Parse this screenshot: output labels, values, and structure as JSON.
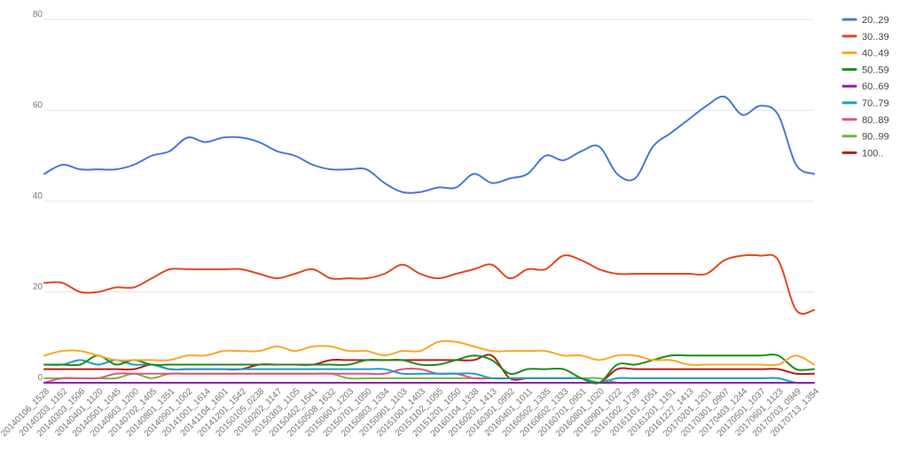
{
  "chart_data": {
    "type": "line",
    "title": "",
    "xlabel": "",
    "ylabel": "",
    "ylim": [
      0,
      80
    ],
    "yticks": [
      0,
      20,
      40,
      60,
      80
    ],
    "grid": true,
    "legend_position": "top-right",
    "x_labels": [
      "20140106_1528",
      "20140203_1152",
      "20140303_1506",
      "20140401_1120",
      "20140501_1045",
      "20140603_1200",
      "20140702_1405",
      "20140801_1351",
      "20140901_1002",
      "20141001_1614",
      "20141104_1601",
      "20141201_1542",
      "20150105_0238",
      "20150202_1147",
      "20150303_1105",
      "20150402_1541",
      "20150508_1632",
      "20150601_1203",
      "20150701_1050",
      "20150803_1334",
      "20150901_1103",
      "20151001_1403",
      "20151102_1055",
      "20151201_1050",
      "20160104_1338",
      "20160201_1413",
      "20160301_0952",
      "20160401_1011",
      "20160502_1335",
      "20160602_1333",
      "20160701_0951",
      "20160801_1020",
      "20160901_1022",
      "20161002_1739",
      "20161101_1051",
      "20161201_1151",
      "20161227_1413",
      "20170201_1201",
      "20170301_0907",
      "20170403_1244",
      "20170501_1037",
      "20170601_1123",
      "20170703_0949",
      "20170713_1354"
    ],
    "series": [
      {
        "name": "20..29",
        "color": "#4a76d9",
        "values": [
          46,
          48,
          47,
          47,
          47,
          48,
          50,
          51,
          54,
          53,
          54,
          54,
          53,
          51,
          50,
          48,
          47,
          47,
          47,
          44,
          42,
          42,
          43,
          43,
          46,
          44,
          45,
          46,
          50,
          49,
          51,
          52,
          46,
          45,
          52,
          55,
          58,
          61,
          63,
          59,
          61,
          59,
          48,
          46
        ]
      },
      {
        "name": "30..39",
        "color": "#e2481f",
        "values": [
          22,
          22,
          20,
          20,
          21,
          21,
          23,
          25,
          25,
          25,
          25,
          25,
          24,
          23,
          24,
          25,
          23,
          23,
          23,
          24,
          26,
          24,
          23,
          24,
          25,
          26,
          23,
          25,
          25,
          28,
          27,
          25,
          24,
          24,
          24,
          24,
          24,
          24,
          27,
          28,
          28,
          27,
          16,
          16
        ]
      },
      {
        "name": "40..49",
        "color": "#f9a825",
        "values": [
          6,
          7,
          7,
          6,
          5,
          5,
          5,
          5,
          6,
          6,
          7,
          7,
          7,
          8,
          7,
          8,
          8,
          7,
          7,
          6,
          7,
          7,
          9,
          9,
          8,
          7,
          7,
          7,
          7,
          6,
          6,
          5,
          6,
          6,
          5,
          5,
          4,
          4,
          4,
          4,
          4,
          4,
          6,
          4
        ]
      },
      {
        "name": "50..59",
        "color": "#1e8b1e",
        "values": [
          4,
          4,
          4,
          6,
          4,
          5,
          4,
          4,
          4,
          4,
          4,
          4,
          4,
          4,
          4,
          4,
          4,
          4,
          5,
          5,
          5,
          4,
          4,
          5,
          6,
          5,
          2,
          3,
          3,
          3,
          1,
          0,
          4,
          4,
          5,
          6,
          6,
          6,
          6,
          6,
          6,
          6,
          3,
          3
        ]
      },
      {
        "name": "60..69",
        "color": "#8e24aa",
        "values": [
          0,
          0,
          0,
          0,
          0,
          0,
          0,
          0,
          0,
          0,
          0,
          0,
          0,
          0,
          0,
          0,
          0,
          0,
          0,
          0,
          0,
          0,
          0,
          0,
          0,
          0,
          0,
          0,
          0,
          0,
          0,
          0,
          0,
          0,
          0,
          0,
          0,
          0,
          0,
          0,
          0,
          0,
          0,
          0
        ]
      },
      {
        "name": "70..79",
        "color": "#1a9fc0",
        "values": [
          4,
          4,
          5,
          4,
          5,
          4,
          4,
          3,
          3,
          3,
          3,
          3,
          3,
          3,
          3,
          3,
          3,
          3,
          3,
          3,
          2,
          2,
          2,
          2,
          2,
          1,
          1,
          1,
          1,
          1,
          1,
          0,
          1,
          1,
          1,
          1,
          1,
          1,
          1,
          1,
          1,
          1,
          0,
          0
        ]
      },
      {
        "name": "80..89",
        "color": "#e05387",
        "values": [
          0,
          1,
          1,
          1,
          2,
          2,
          2,
          2,
          2,
          2,
          2,
          2,
          2,
          2,
          2,
          2,
          2,
          2,
          2,
          2,
          3,
          3,
          2,
          2,
          1,
          1,
          1,
          1,
          1,
          1,
          1,
          0,
          0,
          0,
          0,
          0,
          0,
          0,
          0,
          0,
          0,
          0,
          0,
          0
        ]
      },
      {
        "name": "90..99",
        "color": "#7cb342",
        "values": [
          1,
          1,
          1,
          1,
          1,
          2,
          1,
          2,
          2,
          2,
          2,
          2,
          2,
          2,
          2,
          2,
          2,
          1,
          1,
          1,
          1,
          1,
          1,
          1,
          1,
          1,
          1,
          1,
          1,
          1,
          1,
          1,
          0,
          0,
          0,
          0,
          0,
          0,
          0,
          0,
          0,
          0,
          0,
          0
        ]
      },
      {
        "name": "100..",
        "color": "#b71c1c",
        "values": [
          3,
          3,
          3,
          3,
          3,
          3,
          4,
          3,
          3,
          3,
          3,
          3,
          4,
          4,
          4,
          4,
          5,
          5,
          5,
          5,
          5,
          5,
          5,
          5,
          5,
          6,
          1,
          1,
          1,
          1,
          1,
          0,
          3,
          3,
          3,
          3,
          3,
          3,
          3,
          3,
          3,
          3,
          2,
          2
        ]
      }
    ]
  }
}
